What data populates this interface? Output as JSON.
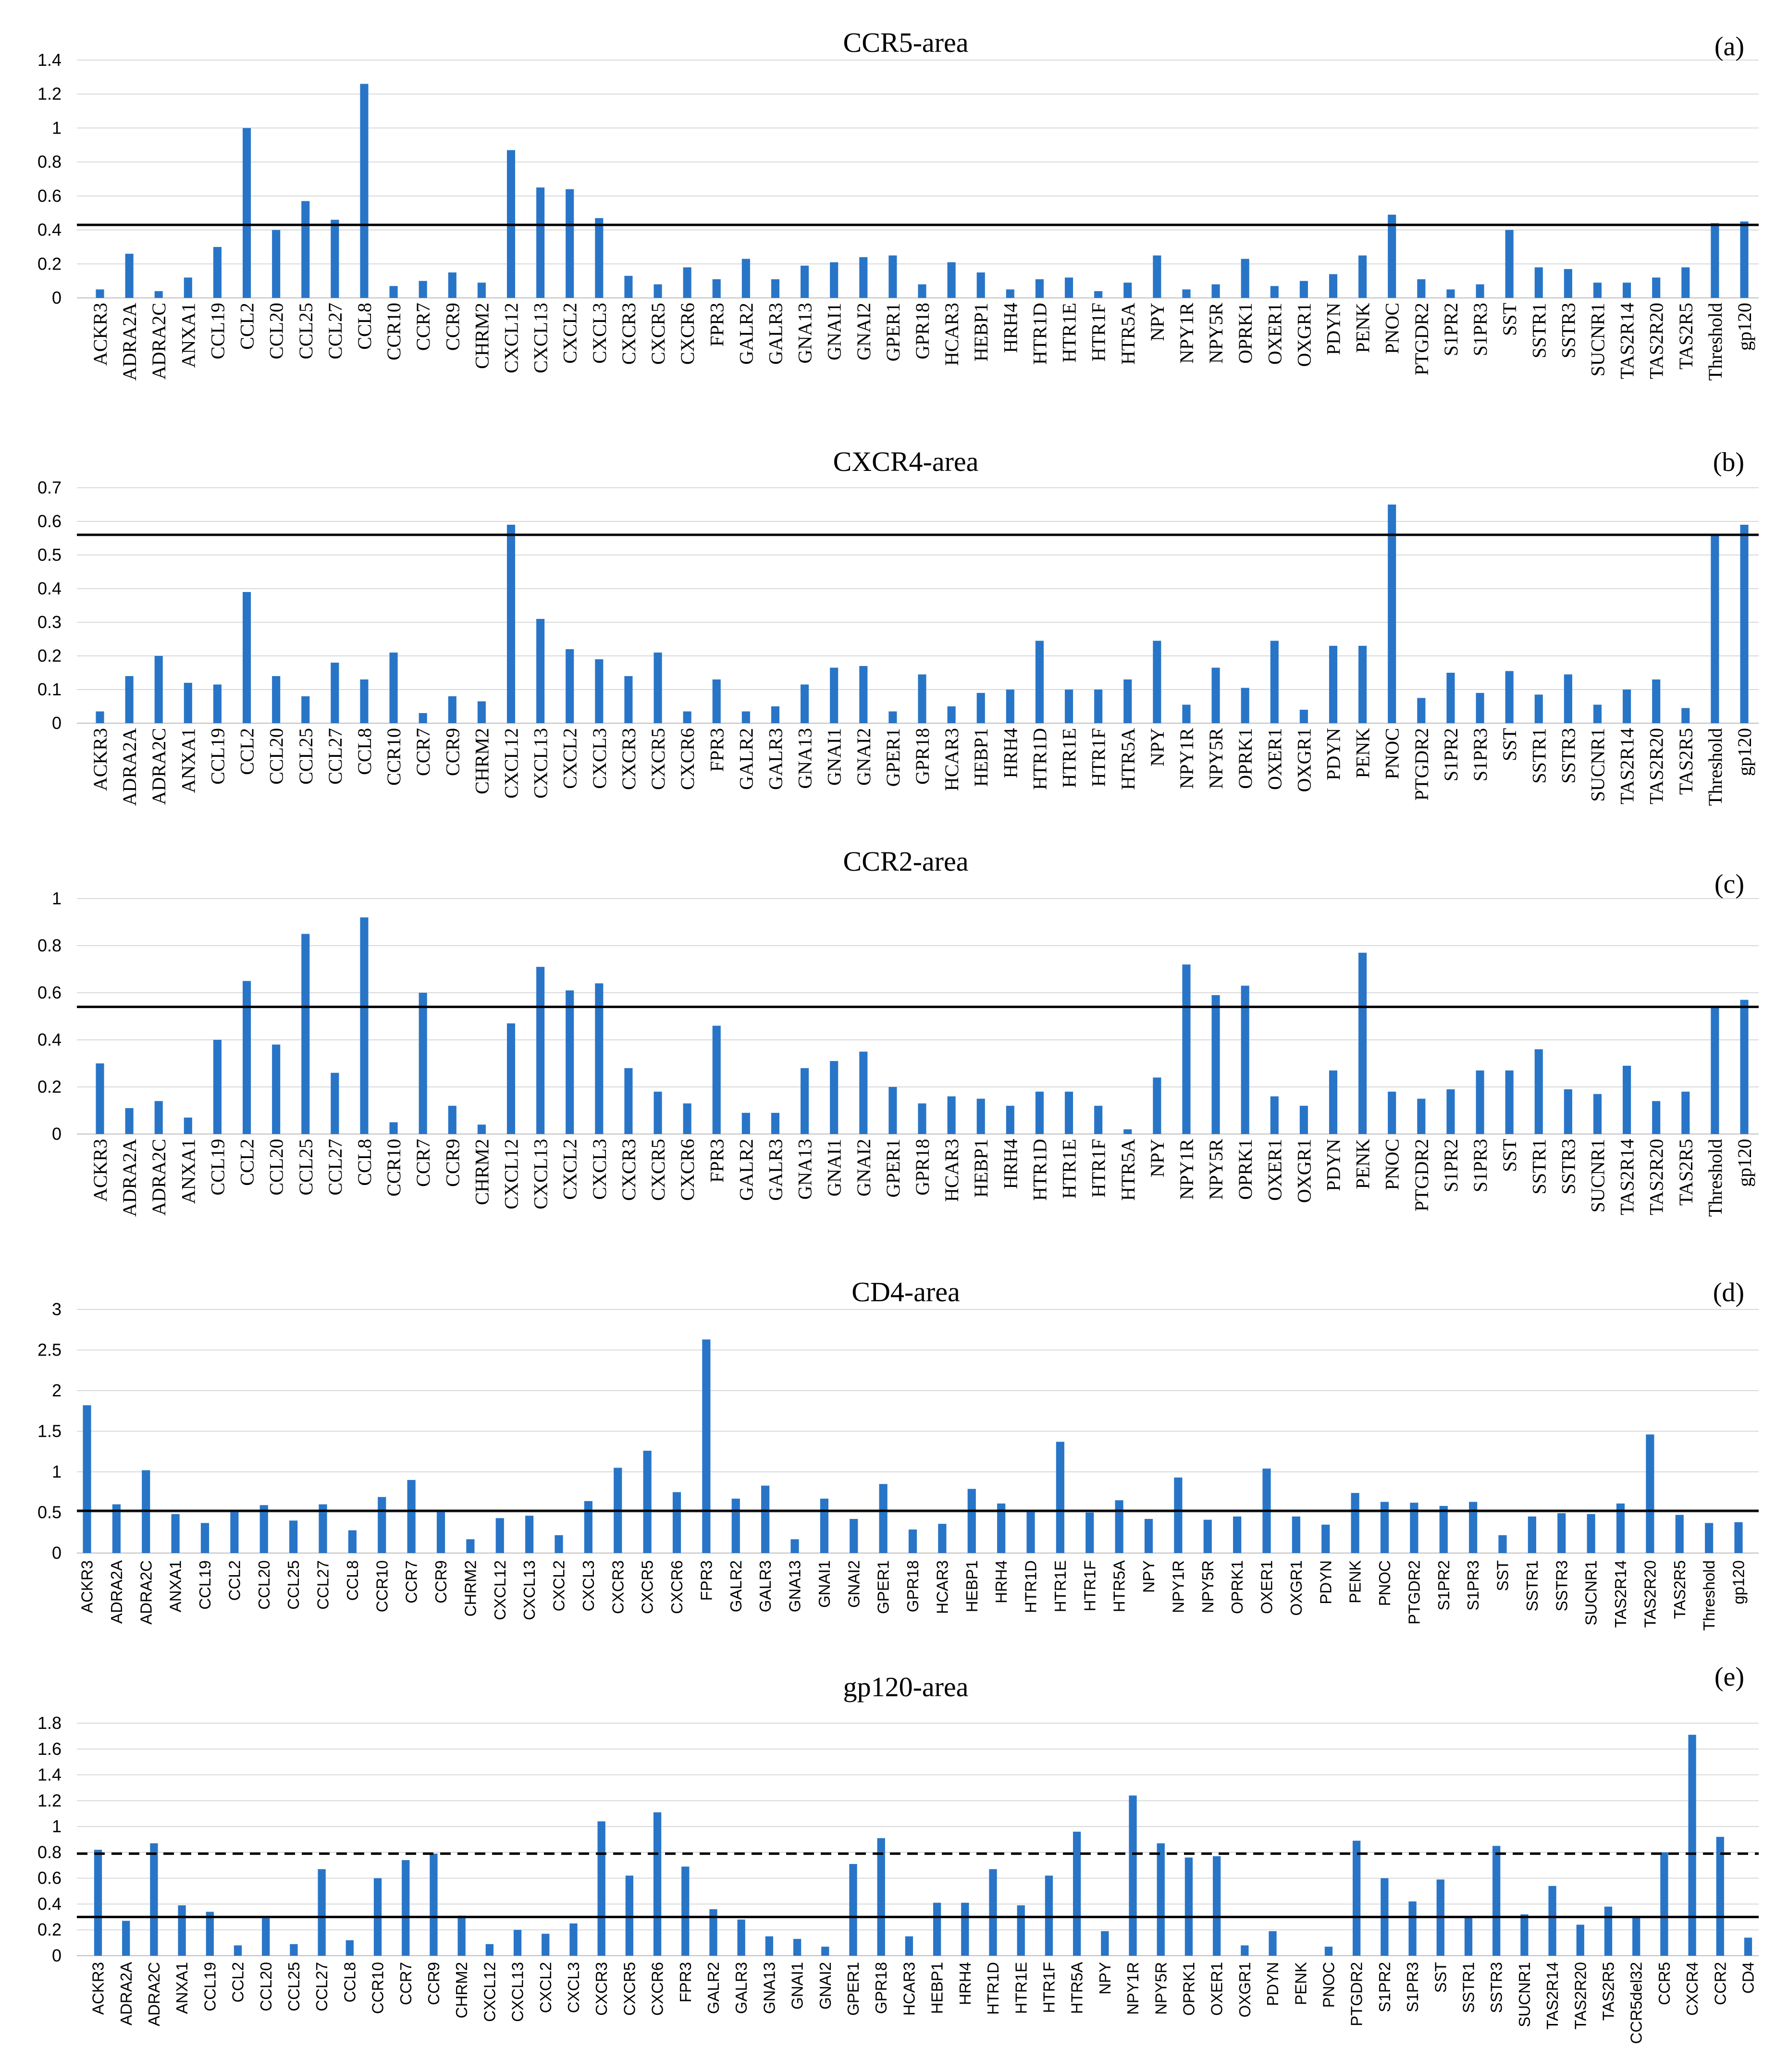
{
  "figure": {
    "colors": {
      "bar": "#2875C8",
      "line": "#000000",
      "text": "#000000",
      "background": "#ffffff"
    }
  },
  "chart_data": [
    {
      "type": "bar",
      "title": "CCR5-area",
      "panel_label": "(a)",
      "ylim": [
        0,
        1.4
      ],
      "yticks": [
        "0",
        "0.2",
        "0.4",
        "0.6",
        "0.8",
        "1",
        "1.2",
        "1.4"
      ],
      "categories": [
        "ACKR3",
        "ADRA2A",
        "ADRA2C",
        "ANXA1",
        "CCL19",
        "CCL2",
        "CCL20",
        "CCL25",
        "CCL27",
        "CCL8",
        "CCR10",
        "CCR7",
        "CCR9",
        "CHRM2",
        "CXCL12",
        "CXCL13",
        "CXCL2",
        "CXCL3",
        "CXCR3",
        "CXCR5",
        "CXCR6",
        "FPR3",
        "GALR2",
        "GALR3",
        "GNA13",
        "GNAI1",
        "GNAI2",
        "GPER1",
        "GPR18",
        "HCAR3",
        "HEBP1",
        "HRH4",
        "HTR1D",
        "HTR1E",
        "HTR1F",
        "HTR5A",
        "NPY",
        "NPY1R",
        "NPY5R",
        "OPRK1",
        "OXER1",
        "OXGR1",
        "PDYN",
        "PENK",
        "PNOC",
        "PTGDR2",
        "S1PR2",
        "S1PR3",
        "SST",
        "SSTR1",
        "SSTR3",
        "SUCNR1",
        "TAS2R14",
        "TAS2R20",
        "TAS2R5",
        "Threshold",
        "gp120"
      ],
      "values": [
        0.05,
        0.26,
        0.04,
        0.12,
        0.3,
        1.0,
        0.4,
        0.57,
        0.46,
        1.26,
        0.07,
        0.1,
        0.15,
        0.09,
        0.87,
        0.65,
        0.64,
        0.47,
        0.13,
        0.08,
        0.18,
        0.11,
        0.23,
        0.11,
        0.19,
        0.21,
        0.24,
        0.25,
        0.08,
        0.21,
        0.15,
        0.05,
        0.11,
        0.12,
        0.04,
        0.09,
        0.25,
        0.05,
        0.08,
        0.23,
        0.07,
        0.1,
        0.14,
        0.25,
        0.49,
        0.11,
        0.05,
        0.08,
        0.4,
        0.18,
        0.17,
        0.09,
        0.09,
        0.12,
        0.18,
        0.44,
        0.45
      ],
      "hlines": [
        {
          "value": 0.43,
          "style": "solid"
        }
      ]
    },
    {
      "type": "bar",
      "title": "CXCR4-area",
      "panel_label": "(b)",
      "ylim": [
        0,
        0.7
      ],
      "yticks": [
        "0",
        "0.1",
        "0.2",
        "0.3",
        "0.4",
        "0.5",
        "0.6",
        "0.7"
      ],
      "categories": [
        "ACKR3",
        "ADRA2A",
        "ADRA2C",
        "ANXA1",
        "CCL19",
        "CCL2",
        "CCL20",
        "CCL25",
        "CCL27",
        "CCL8",
        "CCR10",
        "CCR7",
        "CCR9",
        "CHRM2",
        "CXCL12",
        "CXCL13",
        "CXCL2",
        "CXCL3",
        "CXCR3",
        "CXCR5",
        "CXCR6",
        "FPR3",
        "GALR2",
        "GALR3",
        "GNA13",
        "GNAI1",
        "GNAI2",
        "GPER1",
        "GPR18",
        "HCAR3",
        "HEBP1",
        "HRH4",
        "HTR1D",
        "HTR1E",
        "HTR1F",
        "HTR5A",
        "NPY",
        "NPY1R",
        "NPY5R",
        "OPRK1",
        "OXER1",
        "OXGR1",
        "PDYN",
        "PENK",
        "PNOC",
        "PTGDR2",
        "S1PR2",
        "S1PR3",
        "SST",
        "SSTR1",
        "SSTR3",
        "SUCNR1",
        "TAS2R14",
        "TAS2R20",
        "TAS2R5",
        "Threshold",
        "gp120"
      ],
      "values": [
        0.035,
        0.14,
        0.2,
        0.12,
        0.115,
        0.39,
        0.14,
        0.08,
        0.18,
        0.13,
        0.21,
        0.03,
        0.08,
        0.065,
        0.59,
        0.31,
        0.22,
        0.19,
        0.14,
        0.21,
        0.035,
        0.13,
        0.035,
        0.05,
        0.115,
        0.165,
        0.17,
        0.035,
        0.145,
        0.05,
        0.09,
        0.1,
        0.245,
        0.1,
        0.1,
        0.13,
        0.245,
        0.055,
        0.165,
        0.105,
        0.245,
        0.04,
        0.23,
        0.23,
        0.65,
        0.075,
        0.15,
        0.09,
        0.155,
        0.085,
        0.145,
        0.055,
        0.1,
        0.13,
        0.045,
        0.56,
        0.59
      ],
      "hlines": [
        {
          "value": 0.56,
          "style": "solid"
        }
      ]
    },
    {
      "type": "bar",
      "title": "CCR2-area",
      "panel_label": "(c)",
      "ylim": [
        0,
        1
      ],
      "yticks": [
        "0",
        "0.2",
        "0.4",
        "0.6",
        "0.8",
        "1"
      ],
      "categories": [
        "ACKR3",
        "ADRA2A",
        "ADRA2C",
        "ANXA1",
        "CCL19",
        "CCL2",
        "CCL20",
        "CCL25",
        "CCL27",
        "CCL8",
        "CCR10",
        "CCR7",
        "CCR9",
        "CHRM2",
        "CXCL12",
        "CXCL13",
        "CXCL2",
        "CXCL3",
        "CXCR3",
        "CXCR5",
        "CXCR6",
        "FPR3",
        "GALR2",
        "GALR3",
        "GNA13",
        "GNAI1",
        "GNAI2",
        "GPER1",
        "GPR18",
        "HCAR3",
        "HEBP1",
        "HRH4",
        "HTR1D",
        "HTR1E",
        "HTR1F",
        "HTR5A",
        "NPY",
        "NPY1R",
        "NPY5R",
        "OPRK1",
        "OXER1",
        "OXGR1",
        "PDYN",
        "PENK",
        "PNOC",
        "PTGDR2",
        "S1PR2",
        "S1PR3",
        "SST",
        "SSTR1",
        "SSTR3",
        "SUCNR1",
        "TAS2R14",
        "TAS2R20",
        "TAS2R5",
        "Threshold",
        "gp120"
      ],
      "values": [
        0.3,
        0.11,
        0.14,
        0.07,
        0.4,
        0.65,
        0.38,
        0.85,
        0.26,
        0.92,
        0.05,
        0.6,
        0.12,
        0.04,
        0.47,
        0.71,
        0.61,
        0.64,
        0.28,
        0.18,
        0.13,
        0.46,
        0.09,
        0.09,
        0.28,
        0.31,
        0.35,
        0.2,
        0.13,
        0.16,
        0.15,
        0.12,
        0.18,
        0.18,
        0.12,
        0.02,
        0.24,
        0.72,
        0.59,
        0.63,
        0.16,
        0.12,
        0.27,
        0.77,
        0.18,
        0.15,
        0.19,
        0.27,
        0.27,
        0.36,
        0.19,
        0.17,
        0.29,
        0.14,
        0.18,
        0.54,
        0.57
      ],
      "hlines": [
        {
          "value": 0.54,
          "style": "solid"
        }
      ]
    },
    {
      "type": "bar",
      "title": "CD4-area",
      "panel_label": "(d)",
      "ylim": [
        0,
        3
      ],
      "yticks": [
        "0",
        "0.5",
        "1",
        "1.5",
        "2",
        "2.5",
        "3"
      ],
      "categories": [
        "ACKR3",
        "ADRA2A",
        "ADRA2C",
        "ANXA1",
        "CCL19",
        "CCL2",
        "CCL20",
        "CCL25",
        "CCL27",
        "CCL8",
        "CCR10",
        "CCR7",
        "CCR9",
        "CHRM2",
        "CXCL12",
        "CXCL13",
        "CXCL2",
        "CXCL3",
        "CXCR3",
        "CXCR5",
        "CXCR6",
        "FPR3",
        "GALR2",
        "GALR3",
        "GNA13",
        "GNAI1",
        "GNAI2",
        "GPER1",
        "GPR18",
        "HCAR3",
        "HEBP1",
        "HRH4",
        "HTR1D",
        "HTR1E",
        "HTR1F",
        "HTR5A",
        "NPY",
        "NPY1R",
        "NPY5R",
        "OPRK1",
        "OXER1",
        "OXGR1",
        "PDYN",
        "PENK",
        "PNOC",
        "PTGDR2",
        "S1PR2",
        "S1PR3",
        "SST",
        "SSTR1",
        "SSTR3",
        "SUCNR1",
        "TAS2R14",
        "TAS2R20",
        "TAS2R5",
        "Threshold",
        "gp120"
      ],
      "values": [
        1.82,
        0.6,
        1.02,
        0.48,
        0.37,
        0.52,
        0.59,
        0.4,
        0.6,
        0.28,
        0.69,
        0.9,
        0.52,
        0.17,
        0.43,
        0.46,
        0.22,
        0.64,
        1.05,
        1.26,
        0.75,
        2.63,
        0.67,
        0.83,
        0.17,
        0.67,
        0.42,
        0.85,
        0.29,
        0.36,
        0.79,
        0.61,
        0.52,
        1.37,
        0.5,
        0.65,
        0.42,
        0.93,
        0.41,
        0.45,
        1.04,
        0.45,
        0.35,
        0.74,
        0.63,
        0.62,
        0.58,
        0.63,
        0.22,
        0.45,
        0.49,
        0.48,
        0.61,
        1.46,
        0.47,
        0.37,
        0.38
      ],
      "hlines": [
        {
          "value": 0.52,
          "style": "solid"
        }
      ]
    },
    {
      "type": "bar",
      "title": "gp120-area",
      "panel_label": "(e)",
      "ylim": [
        0,
        1.8
      ],
      "yticks": [
        "0",
        "0.2",
        "0.4",
        "0.6",
        "0.8",
        "1",
        "1.2",
        "1.4",
        "1.6",
        "1.8"
      ],
      "categories": [
        "ACKR3",
        "ADRA2A",
        "ADRA2C",
        "ANXA1",
        "CCL19",
        "CCL2",
        "CCL20",
        "CCL25",
        "CCL27",
        "CCL8",
        "CCR10",
        "CCR7",
        "CCR9",
        "CHRM2",
        "CXCL12",
        "CXCL13",
        "CXCL2",
        "CXCL3",
        "CXCR3",
        "CXCR5",
        "CXCR6",
        "FPR3",
        "GALR2",
        "GALR3",
        "GNA13",
        "GNAI1",
        "GNAI2",
        "GPER1",
        "GPR18",
        "HCAR3",
        "HEBP1",
        "HRH4",
        "HTR1D",
        "HTR1E",
        "HTR1F",
        "HTR5A",
        "NPY",
        "NPY1R",
        "NPY5R",
        "OPRK1",
        "OXER1",
        "OXGR1",
        "PDYN",
        "PENK",
        "PNOC",
        "PTGDR2",
        "S1PR2",
        "S1PR3",
        "SST",
        "SSTR1",
        "SSTR3",
        "SUCNR1",
        "TAS2R14",
        "TAS2R20",
        "TAS2R5",
        "CCR5del32",
        "CCR5",
        "CXCR4",
        "CCR2",
        "CD4"
      ],
      "values": [
        0.82,
        0.27,
        0.87,
        0.39,
        0.34,
        0.08,
        0.29,
        0.09,
        0.67,
        0.12,
        0.6,
        0.74,
        0.79,
        0.31,
        0.09,
        0.2,
        0.17,
        0.25,
        1.04,
        0.62,
        1.11,
        0.69,
        0.36,
        0.28,
        0.15,
        0.13,
        0.07,
        0.71,
        0.91,
        0.15,
        0.41,
        0.41,
        0.67,
        0.39,
        0.62,
        0.96,
        0.19,
        1.24,
        0.87,
        0.76,
        0.77,
        0.08,
        0.19,
        0.0,
        0.07,
        0.89,
        0.6,
        0.42,
        0.59,
        0.3,
        0.85,
        0.32,
        0.54,
        0.24,
        0.38,
        0.3,
        0.8,
        1.71,
        0.92,
        0.14
      ],
      "hlines": [
        {
          "value": 0.3,
          "style": "solid"
        },
        {
          "value": 0.79,
          "style": "dashed"
        }
      ]
    }
  ]
}
